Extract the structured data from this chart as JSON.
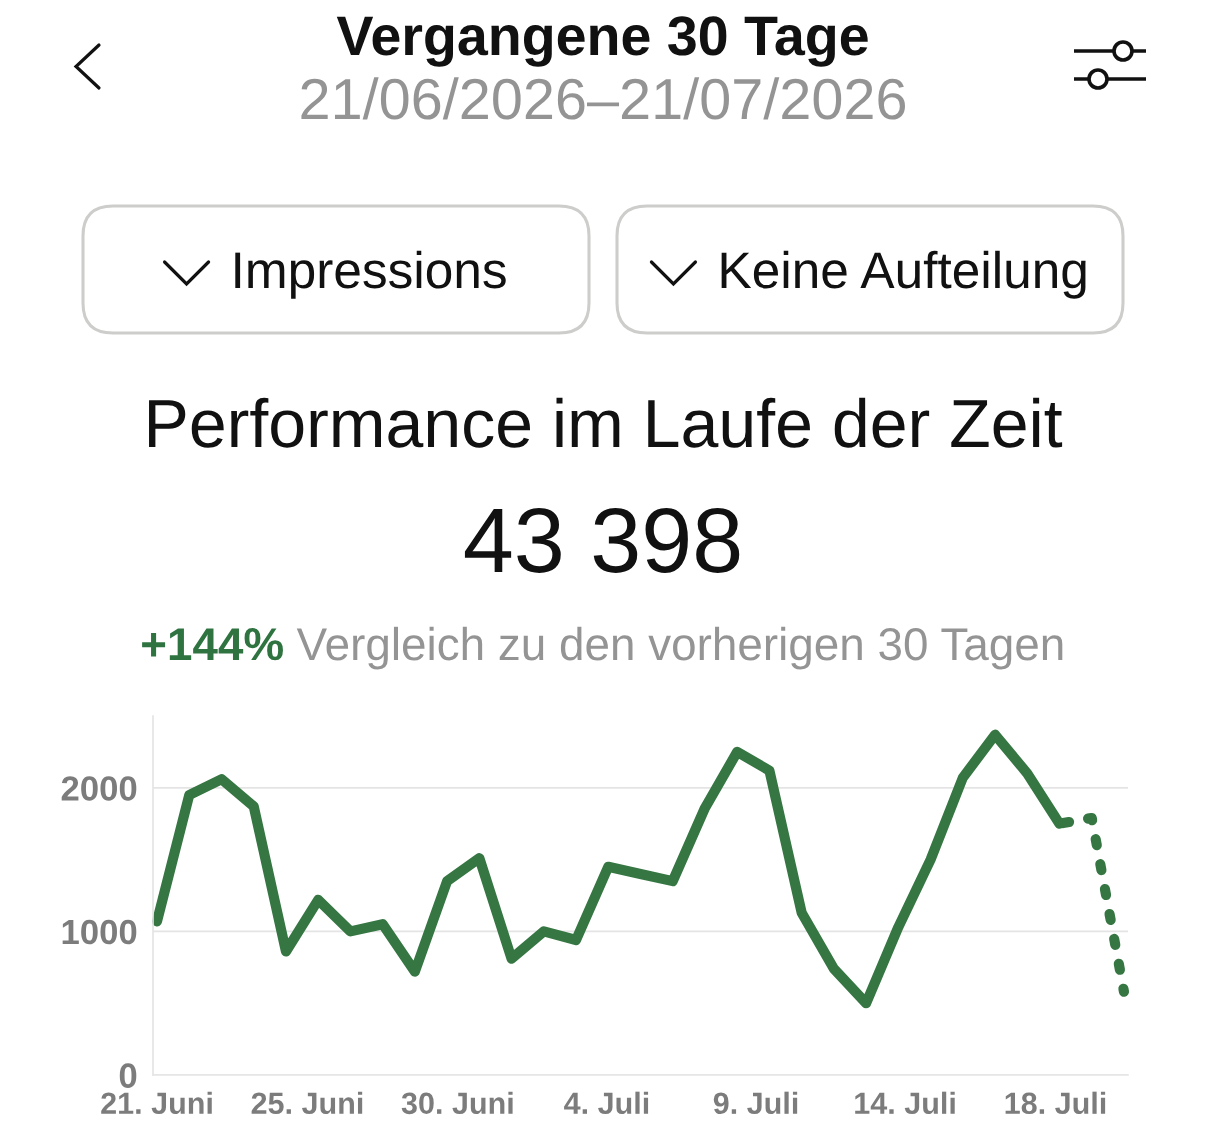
{
  "chart_data": {
    "type": "line",
    "title": "Performance im Laufe der Zeit",
    "subtitle": "43 398",
    "annotations": [
      "Vergangene 30 Tage",
      "21/06/2026–21/07/2026",
      "Impressions",
      "Keine Aufteilung",
      "+144%",
      "Vergleich zu den vorherigen 30 Tagen"
    ],
    "x": [
      "2026-06-21",
      "2026-06-22",
      "2026-06-23",
      "2026-06-24",
      "2026-06-25",
      "2026-06-26",
      "2026-06-27",
      "2026-06-28",
      "2026-06-29",
      "2026-06-30",
      "2026-07-01",
      "2026-07-02",
      "2026-07-03",
      "2026-07-04",
      "2026-07-05",
      "2026-07-06",
      "2026-07-07",
      "2026-07-08",
      "2026-07-09",
      "2026-07-10",
      "2026-07-11",
      "2026-07-12",
      "2026-07-13",
      "2026-07-14",
      "2026-07-15",
      "2026-07-16",
      "2026-07-17",
      "2026-07-18",
      "2026-07-19",
      "2026-07-20",
      "2026-07-21"
    ],
    "series": [
      {
        "color": "#357642",
        "line_style": "solid",
        "values": [
          1070,
          1950,
          2060,
          1870,
          860,
          1220,
          1000,
          1050,
          720,
          1350,
          1510,
          810,
          1000,
          940,
          1450,
          1400,
          1350,
          1860,
          2250,
          2120,
          1130,
          740,
          500,
          1030,
          1500,
          2070,
          2370,
          2100,
          1750,
          null,
          null
        ]
      },
      {
        "color": "#357642",
        "line_style": "dotted",
        "values": [
          null,
          null,
          null,
          null,
          null,
          null,
          null,
          null,
          null,
          null,
          null,
          null,
          null,
          null,
          null,
          null,
          null,
          null,
          null,
          null,
          null,
          null,
          null,
          null,
          null,
          null,
          null,
          null,
          1750,
          1790,
          580
        ]
      }
    ],
    "ylim": [
      0,
      2500
    ],
    "yticks": [
      0,
      1000,
      2000
    ],
    "xlim": [
      "2026-06-20T21:00",
      "2026-07-21T03:00"
    ],
    "xticks": [
      {
        "value": "2026-06-21T00:00",
        "label": "21. Juni"
      },
      {
        "value": "2026-06-25T16:00",
        "label": "25. Juni"
      },
      {
        "value": "2026-06-30T08:00",
        "label": "30. Juni"
      },
      {
        "value": "2026-07-04T23:00",
        "label": "4. Juli"
      },
      {
        "value": "2026-07-09T14:00",
        "label": "9. Juli"
      },
      {
        "value": "2026-07-14T05:00",
        "label": "14. Juli"
      },
      {
        "value": "2026-07-18T21:00",
        "label": "18. Juli"
      }
    ],
    "grid": "y"
  }
}
